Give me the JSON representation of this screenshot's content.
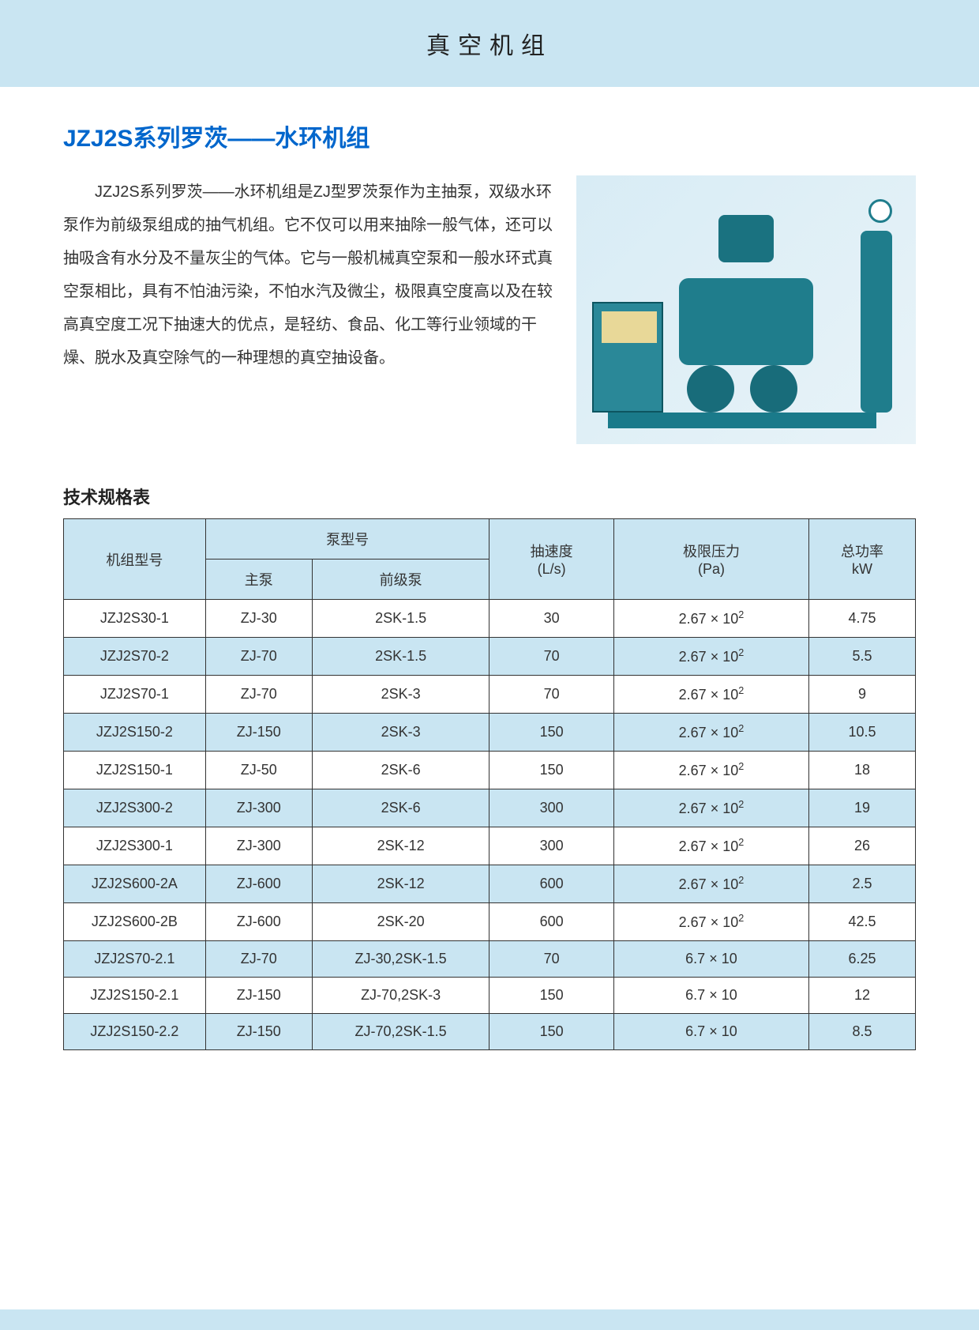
{
  "header": {
    "title": "真空机组"
  },
  "product": {
    "title": "JZJ2S系列罗茨——水环机组",
    "intro": "JZJ2S系列罗茨——水环机组是ZJ型罗茨泵作为主抽泵，双级水环泵作为前级泵组成的抽气机组。它不仅可以用来抽除一般气体，还可以抽吸含有水分及不量灰尘的气体。它与一般机械真空泵和一般水环式真空泵相比，具有不怕油污染，不怕水汽及微尘，极限真空度高以及在较高真空度工况下抽速大的优点，是轻纺、食品、化工等行业领域的干燥、脱水及真空除气的一种理想的真空抽设备。"
  },
  "table": {
    "caption": "技术规格表",
    "columns": {
      "model": "机组型号",
      "pump_group": "泵型号",
      "main_pump": "主泵",
      "fore_pump": "前级泵",
      "speed_label": "抽速度",
      "speed_unit": "(L/s)",
      "pressure_label": "极限压力",
      "pressure_unit": "(Pa)",
      "power_label": "总功率",
      "power_unit": "kW"
    },
    "rows": [
      {
        "model": "JZJ2S30-1",
        "main": "ZJ-30",
        "fore": "2SK-1.5",
        "speed": "30",
        "press_base": "2.67",
        "press_exp": "2",
        "power": "4.75"
      },
      {
        "model": "JZJ2S70-2",
        "main": "ZJ-70",
        "fore": "2SK-1.5",
        "speed": "70",
        "press_base": "2.67",
        "press_exp": "2",
        "power": "5.5"
      },
      {
        "model": "JZJ2S70-1",
        "main": "ZJ-70",
        "fore": "2SK-3",
        "speed": "70",
        "press_base": "2.67",
        "press_exp": "2",
        "power": "9"
      },
      {
        "model": "JZJ2S150-2",
        "main": "ZJ-150",
        "fore": "2SK-3",
        "speed": "150",
        "press_base": "2.67",
        "press_exp": "2",
        "power": "10.5"
      },
      {
        "model": "JZJ2S150-1",
        "main": "ZJ-50",
        "fore": "2SK-6",
        "speed": "150",
        "press_base": "2.67",
        "press_exp": "2",
        "power": "18"
      },
      {
        "model": "JZJ2S300-2",
        "main": "ZJ-300",
        "fore": "2SK-6",
        "speed": "300",
        "press_base": "2.67",
        "press_exp": "2",
        "power": "19"
      },
      {
        "model": "JZJ2S300-1",
        "main": "ZJ-300",
        "fore": "2SK-12",
        "speed": "300",
        "press_base": "2.67",
        "press_exp": "2",
        "power": "26"
      },
      {
        "model": "JZJ2S600-2A",
        "main": "ZJ-600",
        "fore": "2SK-12",
        "speed": "600",
        "press_base": "2.67",
        "press_exp": "2",
        "power": "2.5"
      },
      {
        "model": "JZJ2S600-2B",
        "main": "ZJ-600",
        "fore": "2SK-20",
        "speed": "600",
        "press_base": "2.67",
        "press_exp": "2",
        "power": "42.5"
      },
      {
        "model": "JZJ2S70-2.1",
        "main": "ZJ-70",
        "fore": "ZJ-30,2SK-1.5",
        "speed": "70",
        "press_base": "6.7",
        "press_exp": "",
        "power": "6.25"
      },
      {
        "model": "JZJ2S150-2.1",
        "main": "ZJ-150",
        "fore": "ZJ-70,2SK-3",
        "speed": "150",
        "press_base": "6.7",
        "press_exp": "",
        "power": "12"
      },
      {
        "model": "JZJ2S150-2.2",
        "main": "ZJ-150",
        "fore": "ZJ-70,2SK-1.5",
        "speed": "150",
        "press_base": "6.7",
        "press_exp": "",
        "power": "8.5"
      }
    ]
  },
  "colors": {
    "band": "#c9e5f2",
    "title": "#0066cc",
    "border": "#333333"
  }
}
